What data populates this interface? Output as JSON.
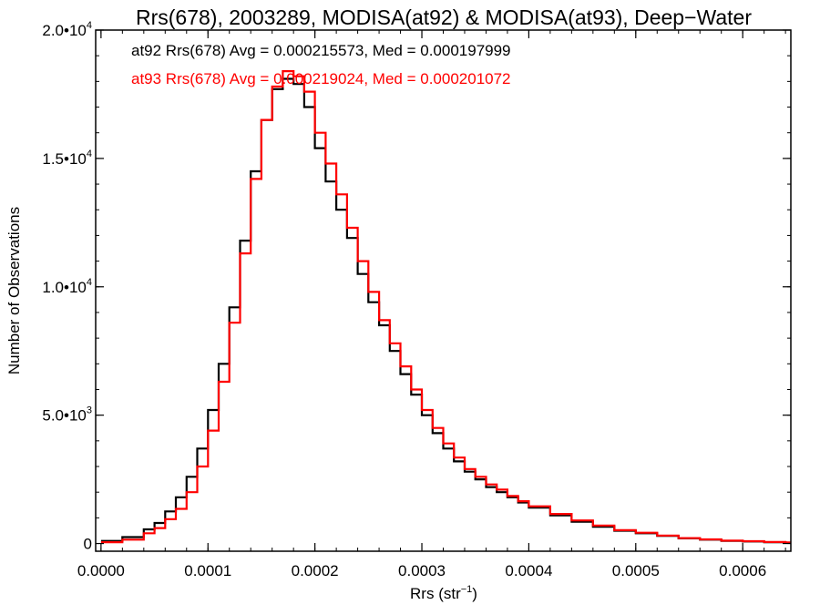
{
  "chart_data": {
    "type": "line",
    "title": "Rrs(678), 2003289, MODISA(at92) & MODISA(at93), Deep−Water",
    "xlabel": "Rrs (str",
    "xlabel_sup": "−1",
    "xlabel_end": ")",
    "ylabel": "Number of Observations",
    "xlim": [
      -5e-06,
      0.000645
    ],
    "ylim": [
      -300,
      20000
    ],
    "x_ticks": [
      {
        "value": 0.0,
        "label": "0.0000"
      },
      {
        "value": 0.0001,
        "label": "0.0001"
      },
      {
        "value": 0.0002,
        "label": "0.0002"
      },
      {
        "value": 0.0003,
        "label": "0.0003"
      },
      {
        "value": 0.0004,
        "label": "0.0004"
      },
      {
        "value": 0.0005,
        "label": "0.0005"
      },
      {
        "value": 0.0006,
        "label": "0.0006"
      }
    ],
    "y_ticks": [
      {
        "value": 0,
        "label": "0",
        "exp": ""
      },
      {
        "value": 5000,
        "label": "5.0•10",
        "exp": "3"
      },
      {
        "value": 10000,
        "label": "1.0•10",
        "exp": "4"
      },
      {
        "value": 15000,
        "label": "1.5•10",
        "exp": "4"
      },
      {
        "value": 20000,
        "label": "2.0•10",
        "exp": "4"
      }
    ],
    "annotations": [
      {
        "text": "at92 Rrs(678) Avg = 0.000215573, Med = 0.000197999",
        "color": "#000000"
      },
      {
        "text": "at93 Rrs(678) Avg = 0.000219024, Med = 0.000201072",
        "color": "#ff0000"
      }
    ],
    "series": [
      {
        "name": "at92",
        "color": "#000000",
        "x": [
          0.0,
          2e-05,
          4e-05,
          5e-05,
          6e-05,
          7e-05,
          8e-05,
          9e-05,
          0.0001,
          0.00011,
          0.00012,
          0.00013,
          0.00014,
          0.00015,
          0.00016,
          0.00017,
          0.00018,
          0.00019,
          0.0002,
          0.00021,
          0.00022,
          0.00023,
          0.00024,
          0.00025,
          0.00026,
          0.00027,
          0.00028,
          0.00029,
          0.0003,
          0.00031,
          0.00032,
          0.00033,
          0.00034,
          0.00035,
          0.00036,
          0.00037,
          0.00038,
          0.00039,
          0.0004,
          0.00042,
          0.00044,
          0.00046,
          0.00048,
          0.0005,
          0.00052,
          0.00054,
          0.00056,
          0.00058,
          0.0006,
          0.00062,
          0.00064
        ],
        "values": [
          100,
          250,
          550,
          800,
          1250,
          1800,
          2600,
          3700,
          5200,
          7000,
          9200,
          11800,
          14500,
          16500,
          17700,
          18100,
          17900,
          17000,
          15400,
          14100,
          13000,
          11900,
          10500,
          9400,
          8500,
          7500,
          6600,
          5800,
          5000,
          4300,
          3700,
          3200,
          2800,
          2500,
          2200,
          2000,
          1800,
          1600,
          1400,
          1100,
          850,
          650,
          500,
          400,
          300,
          200,
          150,
          100,
          80,
          50,
          30
        ]
      },
      {
        "name": "at93",
        "color": "#ff0000",
        "x": [
          0.0,
          2e-05,
          4e-05,
          5e-05,
          6e-05,
          7e-05,
          8e-05,
          9e-05,
          0.0001,
          0.00011,
          0.00012,
          0.00013,
          0.00014,
          0.00015,
          0.00016,
          0.00017,
          0.00018,
          0.00019,
          0.0002,
          0.00021,
          0.00022,
          0.00023,
          0.00024,
          0.00025,
          0.00026,
          0.00027,
          0.00028,
          0.00029,
          0.0003,
          0.00031,
          0.00032,
          0.00033,
          0.00034,
          0.00035,
          0.00036,
          0.00037,
          0.00038,
          0.00039,
          0.0004,
          0.00042,
          0.00044,
          0.00046,
          0.00048,
          0.0005,
          0.00052,
          0.00054,
          0.00056,
          0.00058,
          0.0006,
          0.00062,
          0.00064
        ],
        "values": [
          50,
          150,
          400,
          600,
          950,
          1350,
          2000,
          3000,
          4400,
          6300,
          8600,
          11300,
          14200,
          16500,
          17800,
          18400,
          18200,
          17600,
          16000,
          14800,
          13600,
          12300,
          11000,
          9800,
          8700,
          7800,
          6900,
          6000,
          5200,
          4500,
          3900,
          3350,
          2900,
          2600,
          2300,
          2100,
          1850,
          1650,
          1450,
          1150,
          900,
          700,
          520,
          420,
          310,
          210,
          160,
          110,
          90,
          60,
          40
        ]
      }
    ]
  }
}
